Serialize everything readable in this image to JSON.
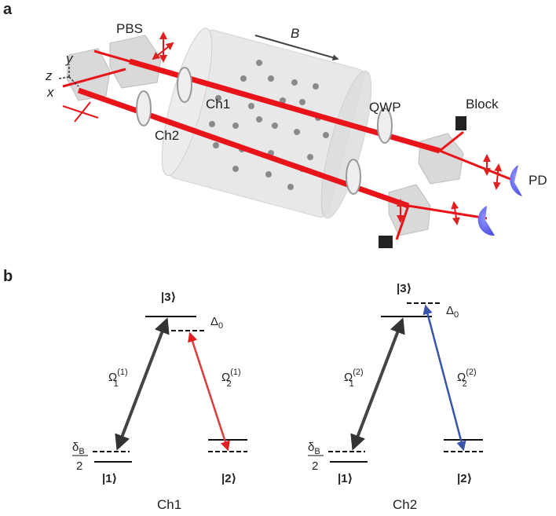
{
  "panel_a": {
    "label": "a",
    "pbs": "PBS",
    "field": "B",
    "ch1": "Ch1",
    "ch2": "Ch2",
    "qwp": "QWP",
    "block": "Block",
    "pd": "PD",
    "axes": {
      "x": "x",
      "y": "y",
      "z": "z"
    }
  },
  "panel_b": {
    "label": "b",
    "diagrams": [
      {
        "caption": "Ch1",
        "excited": "|3⟩",
        "detuning": {
          "base": "Δ",
          "sub": "0"
        },
        "coupling_1": {
          "base": "Ω",
          "sub": "1",
          "sup": "(1)"
        },
        "coupling_2": {
          "base": "Ω",
          "sub": "2",
          "sup": "(1)"
        },
        "splitting": {
          "base": "δ",
          "sub": "B",
          "denominator": "2"
        },
        "ground_1": "|1⟩",
        "ground_2": "|2⟩"
      },
      {
        "caption": "Ch2",
        "excited": "|3⟩",
        "detuning": {
          "base": "Δ",
          "sub": "0"
        },
        "coupling_1": {
          "base": "Ω",
          "sub": "1",
          "sup": "(2)"
        },
        "coupling_2": {
          "base": "Ω",
          "sub": "2",
          "sup": "(2)"
        },
        "splitting": {
          "base": "δ",
          "sub": "B",
          "denominator": "2"
        },
        "ground_1": "|1⟩",
        "ground_2": "|2⟩"
      }
    ]
  }
}
